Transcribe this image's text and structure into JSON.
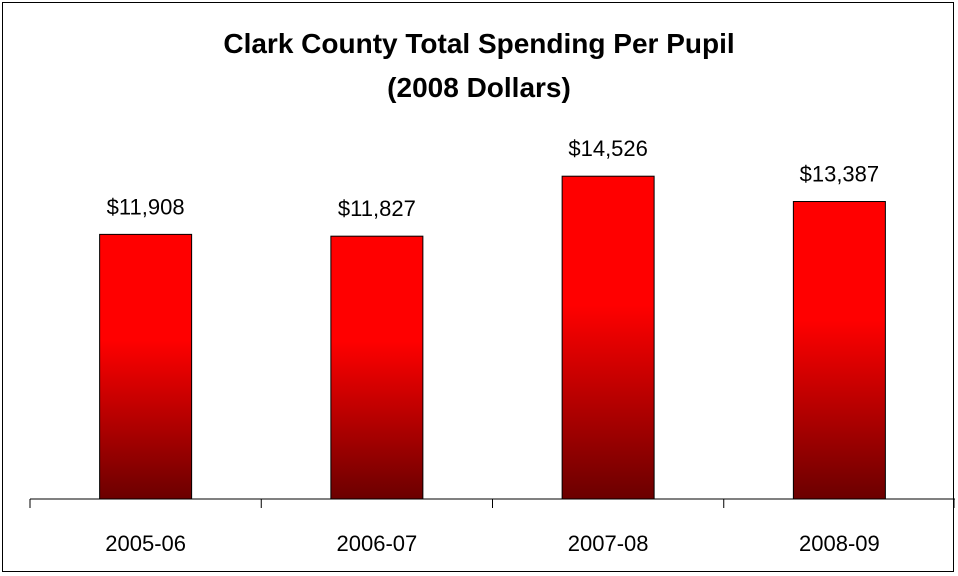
{
  "chart_data": {
    "type": "bar",
    "title": "Clark County Total Spending Per Pupil",
    "subtitle": "(2008 Dollars)",
    "categories": [
      "2005-06",
      "2006-07",
      "2007-08",
      "2008-09"
    ],
    "values": [
      11908,
      11827,
      14526,
      13387
    ],
    "data_labels": [
      "$11,908",
      "$11,827",
      "$14,526",
      "$13,387"
    ],
    "xlabel": "",
    "ylabel": "",
    "ylim": [
      0,
      18000
    ],
    "grid": false,
    "legend": "none",
    "colors": {
      "bar_top": "#ff0000",
      "bar_bottom": "#6b0000",
      "axis": "#000000"
    }
  }
}
